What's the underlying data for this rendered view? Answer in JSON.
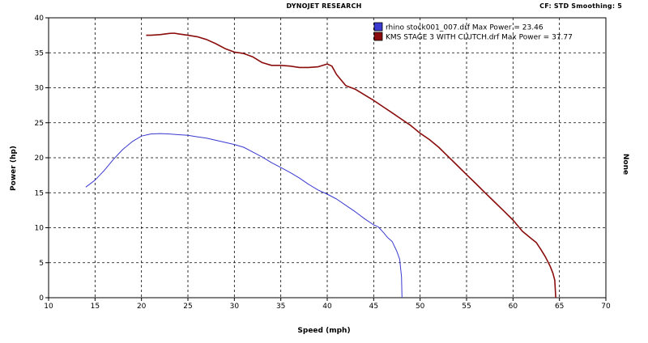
{
  "header": {
    "title": "DYNOJET RESEARCH",
    "cf": "CF: STD  Smoothing: 5"
  },
  "chart_data": {
    "type": "line",
    "xlabel": "Speed (mph)",
    "ylabel": "Power (hp)",
    "ylabel_right": "None",
    "xlim": [
      10,
      70
    ],
    "ylim": [
      0,
      40
    ],
    "xticks": [
      10,
      15,
      20,
      25,
      30,
      35,
      40,
      45,
      50,
      55,
      60,
      65,
      70
    ],
    "yticks": [
      0,
      5,
      10,
      15,
      20,
      25,
      30,
      35,
      40
    ],
    "grid": true,
    "legend_position": "top-right",
    "series": [
      {
        "name": "rhino stock001_007.drf Max Power = 23.46",
        "color": "#3a3ad0",
        "x": [
          14,
          15,
          16,
          17,
          18,
          19,
          20,
          21,
          22,
          23,
          24,
          25,
          26,
          27,
          28,
          29,
          30,
          31,
          32,
          33,
          34,
          35,
          36,
          37,
          38,
          39,
          40,
          41,
          42,
          43,
          44,
          45,
          45.5,
          46,
          46.5,
          47,
          47.5,
          47.8,
          48,
          48.05
        ],
        "y": [
          15.8,
          16.8,
          18.2,
          19.8,
          21.2,
          22.3,
          23.1,
          23.4,
          23.46,
          23.4,
          23.3,
          23.2,
          23.0,
          22.8,
          22.5,
          22.2,
          21.9,
          21.5,
          20.8,
          20.1,
          19.3,
          18.6,
          17.9,
          17.1,
          16.2,
          15.4,
          14.8,
          14.1,
          13.2,
          12.3,
          11.3,
          10.4,
          10.1,
          9.4,
          8.6,
          8.0,
          6.6,
          5.5,
          3.0,
          0
        ]
      },
      {
        "name": "KMS STAGE 3 WITH CLUTCH.drf Max Power = 37.77",
        "color": "#8a0c0c",
        "x": [
          20.5,
          21,
          22,
          23,
          23.5,
          24,
          25,
          26,
          27,
          28,
          29,
          30,
          31,
          32,
          33,
          34,
          35,
          36,
          37,
          38,
          39,
          40,
          40.5,
          41,
          42,
          43,
          44,
          45,
          46,
          47,
          48,
          49,
          50,
          51,
          52,
          53,
          54,
          55,
          56,
          57,
          58,
          59,
          60,
          61,
          62,
          62.5,
          63,
          63.5,
          64,
          64.3,
          64.5,
          64.6
        ],
        "y": [
          37.5,
          37.5,
          37.6,
          37.77,
          37.8,
          37.7,
          37.5,
          37.3,
          36.9,
          36.3,
          35.6,
          35.1,
          34.9,
          34.4,
          33.6,
          33.2,
          33.2,
          33.1,
          32.9,
          32.9,
          33.0,
          33.4,
          33.1,
          31.9,
          30.3,
          29.8,
          29.0,
          28.2,
          27.3,
          26.4,
          25.5,
          24.6,
          23.5,
          22.6,
          21.5,
          20.2,
          18.9,
          17.6,
          16.3,
          15.0,
          13.7,
          12.4,
          11.1,
          9.5,
          8.4,
          7.9,
          6.9,
          5.8,
          4.5,
          3.5,
          2.5,
          0
        ]
      }
    ]
  }
}
